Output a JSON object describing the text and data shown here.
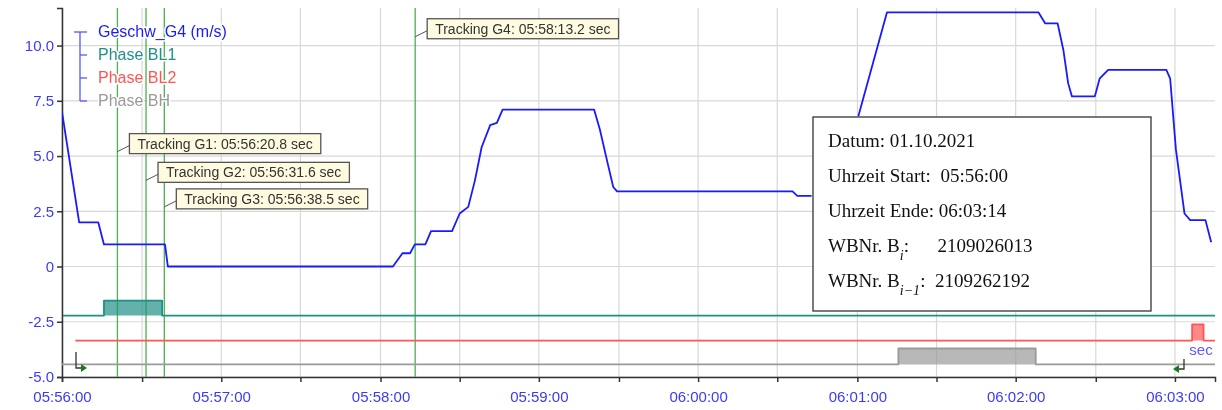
{
  "chart_data": {
    "type": "line",
    "xlabel": "sec",
    "xlim": [
      5.9333,
      6.0542
    ],
    "ylim": [
      -5,
      11.7
    ],
    "xticks": [
      {
        "value": 5.9333,
        "label": "05:56:00"
      },
      {
        "value": 5.9417,
        "label": null
      },
      {
        "value": 5.95,
        "label": "05:57:00"
      },
      {
        "value": 5.9583,
        "label": null
      },
      {
        "value": 5.9667,
        "label": "05:58:00"
      },
      {
        "value": 5.975,
        "label": null
      },
      {
        "value": 5.9833,
        "label": "05:59:00"
      },
      {
        "value": 5.9917,
        "label": null
      },
      {
        "value": 6.0,
        "label": "06:00:00"
      },
      {
        "value": 6.0083,
        "label": null
      },
      {
        "value": 6.0167,
        "label": "06:01:00"
      },
      {
        "value": 6.025,
        "label": null
      },
      {
        "value": 6.0333,
        "label": "06:02:00"
      },
      {
        "value": 6.0417,
        "label": null
      },
      {
        "value": 6.05,
        "label": "06:03:00"
      }
    ],
    "yticks": [
      {
        "value": -5,
        "label": "-5.0"
      },
      -2.5,
      0,
      2.5,
      {
        "value": 5,
        "label": "5.0"
      },
      7.5,
      {
        "value": 10,
        "label": "10.0"
      }
    ],
    "grid": true,
    "legend": "top left",
    "series": [
      {
        "name": "Geschw_G4 (m/s)",
        "color": "#1a1aff",
        "x": [
          5.9333,
          5.9351,
          5.9371,
          5.9377,
          5.9441,
          5.9444,
          5.968,
          5.969,
          5.9698,
          5.9703,
          5.9714,
          5.972,
          5.9742,
          5.975,
          5.9759,
          5.9766,
          5.9773,
          5.9782,
          5.9789,
          5.9795,
          5.9891,
          5.9897,
          5.9905,
          5.9911,
          5.9915,
          6.0099,
          6.0104,
          6.0119,
          6.0125,
          6.0168,
          6.0198,
          6.0357,
          6.0364,
          6.0377,
          6.0383,
          6.0388,
          6.0392,
          6.0416,
          6.0421,
          6.043,
          6.0491,
          6.0495,
          6.0501,
          6.051,
          6.0516,
          6.0532,
          6.0538
        ],
        "values": [
          7.0,
          2.0,
          2.0,
          1.0,
          1.0,
          0,
          0,
          0.6,
          0.6,
          1.0,
          1.0,
          1.6,
          1.6,
          2.4,
          2.7,
          3.9,
          5.4,
          6.4,
          6.5,
          7.1,
          7.1,
          6.2,
          4.7,
          3.6,
          3.4,
          3.4,
          3.2,
          3.2,
          null,
          6.8,
          11.5,
          11.5,
          11.0,
          11.0,
          9.8,
          8.3,
          7.7,
          7.7,
          8.5,
          8.9,
          8.9,
          8.5,
          5.3,
          2.4,
          2.1,
          2.1,
          1.1
        ]
      },
      {
        "name": "Phase BL1",
        "color": "#1f9088",
        "x": [
          5.9334,
          5.9377,
          5.9377,
          5.9438,
          5.9438,
          6.0542
        ],
        "values": [
          -2.22,
          -2.22,
          -1.54,
          -1.54,
          -2.22,
          -2.22
        ],
        "lower": [
          -2.22,
          -2.22,
          -2.22,
          -2.22,
          -2.22,
          -2.22
        ],
        "upper": [
          -2.22,
          -2.22,
          -1.54,
          -1.54,
          -2.22,
          -2.22
        ]
      },
      {
        "name": "Phase BL2",
        "color": "#ff5555",
        "x": [
          5.9347,
          6.0518,
          6.0518,
          6.053,
          6.053,
          6.0542
        ],
        "values": [
          -3.35,
          -3.35,
          -2.62,
          -2.62,
          -3.35,
          -3.35
        ],
        "lower": [
          -3.35,
          -3.35,
          -3.35,
          -3.35,
          -3.35,
          -3.35
        ],
        "upper": [
          -3.35,
          -3.35,
          -2.62,
          -2.62,
          -3.35,
          -3.35
        ]
      },
      {
        "name": "Phase BH",
        "color": "#9a9a9a",
        "x": [
          5.9333,
          6.021,
          6.021,
          6.0354,
          6.0354,
          6.0542
        ],
        "values": [
          -4.43,
          -4.43,
          -3.71,
          -3.71,
          -4.43,
          -4.43
        ],
        "lower": [
          -4.43,
          -4.43,
          -4.43,
          -4.43,
          -4.43,
          -4.43
        ],
        "upper": [
          -4.43,
          -4.43,
          -3.71,
          -3.71,
          -4.43,
          -4.43
        ]
      }
    ],
    "ref_lines": [
      {
        "axis": "x",
        "value": 5.9391111,
        "color": "#4caf50"
      },
      {
        "axis": "x",
        "value": 5.9421111,
        "color": "#4caf50"
      },
      {
        "axis": "x",
        "value": 5.9440278,
        "color": "#4caf50"
      },
      {
        "axis": "x",
        "value": 5.9703333,
        "color": "#4caf50"
      }
    ],
    "annotations": [
      {
        "text": "Tracking G1: 05:56:20.8 sec",
        "x": 5.9391111,
        "y": 5.2
      },
      {
        "text": "Tracking G2: 05:56:31.6 sec",
        "x": 5.9421111,
        "y": 3.9
      },
      {
        "text": "Tracking G3: 05:56:38.5 sec",
        "x": 5.9440278,
        "y": 2.7
      },
      {
        "text": "Tracking G4: 05:58:13.2 sec",
        "x": 5.9703333,
        "y": 10.4
      },
      "Datum: 01.10.2021",
      "Uhrzeit Start:  05:56:00",
      "Uhrzeit Ende: 06:03:14",
      "WBNr. B$_{i}$:      2109026013",
      "WBNr. B$_{i−1}$:  2109262192"
    ]
  }
}
